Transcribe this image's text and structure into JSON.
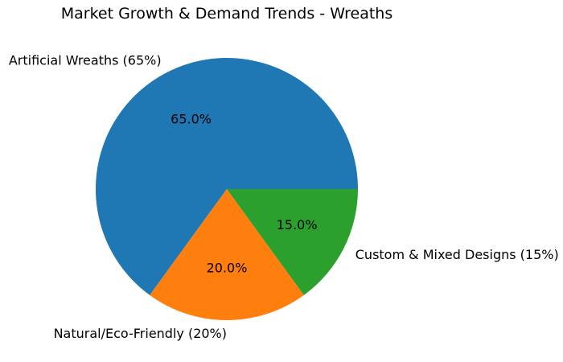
{
  "chart_data": {
    "type": "pie",
    "title": "Market Growth & Demand Trends - Wreaths",
    "categories": [
      "Artificial Wreaths (65%)",
      "Natural/Eco-Friendly (20%)",
      "Custom & Mixed Designs (15%)"
    ],
    "values": [
      65,
      20,
      15
    ],
    "pct_labels": [
      "65.0%",
      "20.0%",
      "15.0%"
    ],
    "colors": [
      "#1f77b4",
      "#ff7f0e",
      "#2ca02c"
    ],
    "start_angle": 0,
    "direction": "counterclockwise",
    "legend": "none",
    "label_distance": 1.1,
    "pct_distance": 0.6,
    "text_color": "#000000",
    "background_color": "#ffffff"
  }
}
